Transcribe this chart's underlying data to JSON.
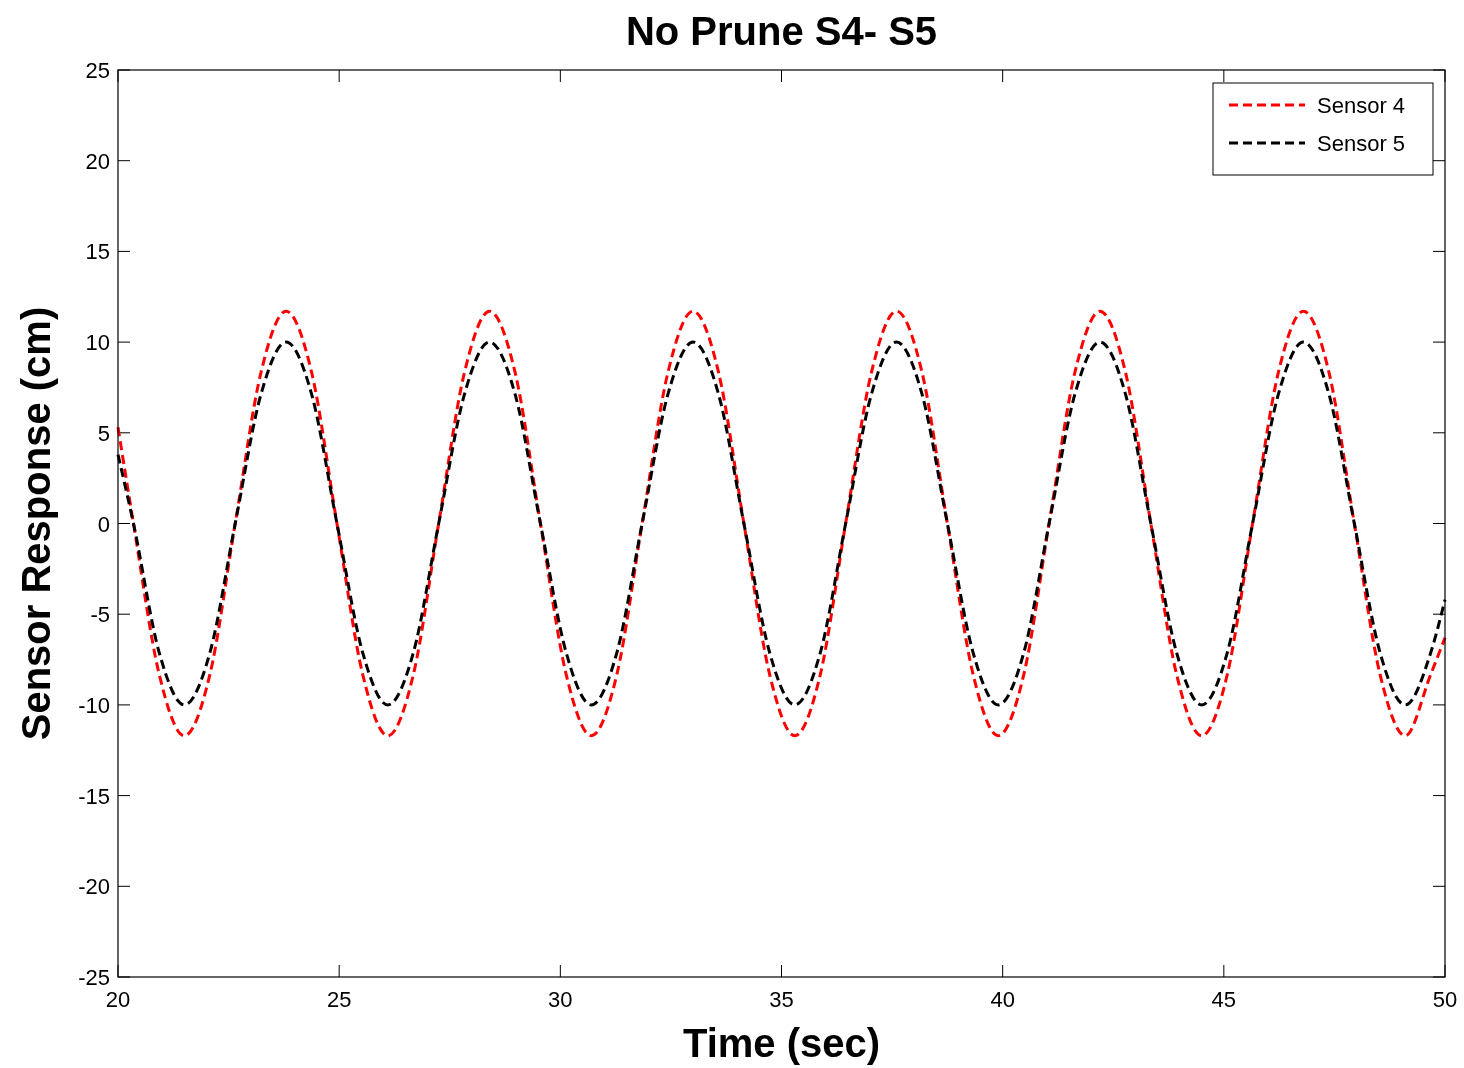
{
  "chart_data": {
    "type": "line",
    "title": "No Prune S4- S5",
    "xlabel": "Time (sec)",
    "ylabel": "Sensor Response (cm)",
    "x": [
      20,
      20.35,
      20.93,
      21.5,
      22.08,
      22.65,
      23.23,
      23.8,
      24.38,
      24.95,
      25.53,
      26.1,
      26.68,
      27.25,
      27.83,
      28.4,
      28.98,
      29.55,
      30.13,
      30.7,
      31.28,
      31.85,
      32.43,
      33.0,
      33.58,
      34.15,
      34.73,
      35.3,
      35.88,
      36.45,
      37.03,
      37.6,
      38.18,
      38.75,
      39.33,
      39.9,
      40.48,
      41.05,
      41.63,
      42.2,
      42.78,
      43.35,
      43.93,
      44.5,
      45.08,
      45.65,
      46.23,
      46.8,
      47.38,
      47.95,
      48.53,
      49.1,
      49.68,
      50
    ],
    "series": [
      {
        "name": "Sensor 4",
        "color": "#ff0000",
        "values": [
          5.3,
          0,
          -8.3,
          -11.7,
          -8.3,
          0,
          8.3,
          11.7,
          8.3,
          0,
          -8.3,
          -11.7,
          -8.3,
          0,
          8.3,
          11.7,
          8.3,
          0,
          -8.3,
          -11.7,
          -8.3,
          0,
          8.3,
          11.7,
          8.3,
          0,
          -8.3,
          -11.7,
          -8.3,
          0,
          8.3,
          11.7,
          8.3,
          0,
          -8.3,
          -11.7,
          -8.3,
          0,
          8.3,
          11.7,
          8.3,
          0,
          -8.3,
          -11.7,
          -8.3,
          0,
          8.3,
          11.7,
          8.3,
          0,
          -8.3,
          -11.7,
          -8.3,
          -6.3
        ]
      },
      {
        "name": "Sensor 5",
        "color": "#000000",
        "values": [
          3.8,
          0,
          -7.1,
          -10,
          -7.1,
          0,
          7.1,
          10,
          7.1,
          0,
          -7.1,
          -10,
          -7.1,
          0,
          7.1,
          10,
          7.1,
          0,
          -7.1,
          -10,
          -7.1,
          0,
          7.1,
          10,
          7.1,
          0,
          -7.1,
          -10,
          -7.1,
          0,
          7.1,
          10,
          7.1,
          0,
          -7.1,
          -10,
          -7.1,
          0,
          7.1,
          10,
          7.1,
          0,
          -7.1,
          -10,
          -7.1,
          0,
          7.1,
          10,
          7.1,
          0,
          -7.1,
          -10,
          -7.1,
          -4.2
        ]
      }
    ],
    "xlim": [
      20,
      50
    ],
    "xticks": [
      20,
      25,
      30,
      35,
      40,
      45,
      50
    ],
    "ylim": [
      -25,
      25
    ],
    "yticks": [
      -25,
      -20,
      -15,
      -10,
      -5,
      0,
      5,
      10,
      15,
      20,
      25
    ],
    "grid": false,
    "legend": "top right",
    "line_style": "dashed",
    "marker": "none"
  }
}
